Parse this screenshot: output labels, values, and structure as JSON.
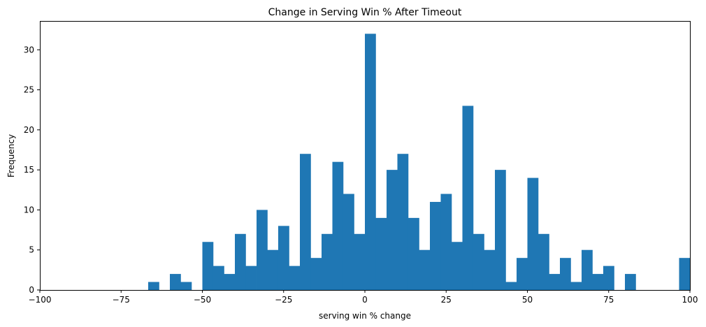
{
  "chart_data": {
    "type": "bar",
    "title": "Change in Serving Win % After Timeout",
    "xlabel": "serving win % change",
    "ylabel": "Frequency",
    "xlim": [
      -100,
      100
    ],
    "ylim": [
      0,
      33.6
    ],
    "grid": false,
    "x_ticks": [
      -100,
      -75,
      -50,
      -25,
      0,
      25,
      50,
      75,
      100
    ],
    "x_tick_labels": [
      "−100",
      "−75",
      "−50",
      "−25",
      "0",
      "25",
      "50",
      "75",
      "100"
    ],
    "y_ticks": [
      0,
      5,
      10,
      15,
      20,
      25,
      30
    ],
    "y_tick_labels": [
      "0",
      "5",
      "10",
      "15",
      "20",
      "25",
      "30"
    ],
    "bin_edges": [
      -66.67,
      -63.33,
      -60.0,
      -56.67,
      -53.33,
      -50.0,
      -46.67,
      -43.33,
      -40.0,
      -36.67,
      -33.33,
      -30.0,
      -26.67,
      -23.33,
      -20.0,
      -16.67,
      -13.33,
      -10.0,
      -6.67,
      -3.33,
      0.0,
      3.33,
      6.67,
      10.0,
      13.33,
      16.67,
      20.0,
      23.33,
      26.67,
      30.0,
      33.33,
      36.67,
      40.0,
      43.33,
      46.67,
      50.0,
      53.33,
      56.67,
      60.0,
      63.33,
      66.67,
      70.0,
      73.33,
      76.67,
      80.0,
      83.33,
      86.67,
      90.0,
      93.33,
      96.67,
      100.0
    ],
    "counts": [
      1,
      0,
      2,
      1,
      0,
      6,
      3,
      2,
      7,
      3,
      10,
      5,
      8,
      3,
      17,
      4,
      7,
      16,
      12,
      7,
      32,
      9,
      15,
      17,
      9,
      5,
      11,
      12,
      6,
      23,
      7,
      5,
      15,
      1,
      4,
      14,
      7,
      2,
      4,
      1,
      5,
      2,
      3,
      0,
      2,
      0,
      0,
      0,
      0,
      4
    ],
    "color": "#1f77b4"
  }
}
